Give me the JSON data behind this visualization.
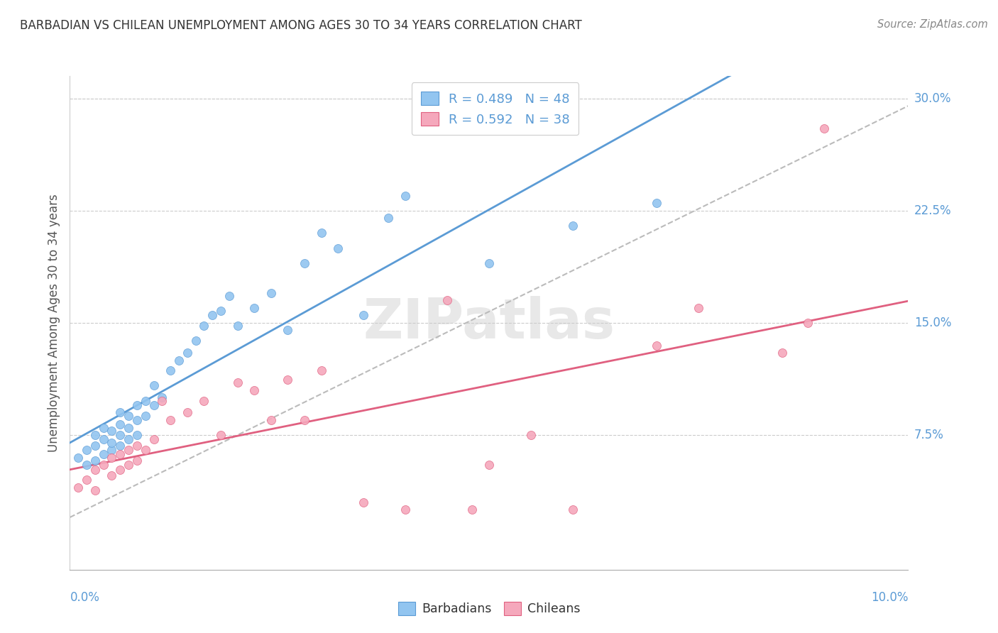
{
  "title": "BARBADIAN VS CHILEAN UNEMPLOYMENT AMONG AGES 30 TO 34 YEARS CORRELATION CHART",
  "source": "Source: ZipAtlas.com",
  "ylabel": "Unemployment Among Ages 30 to 34 years",
  "xlim": [
    0.0,
    0.1
  ],
  "ylim": [
    -0.015,
    0.315
  ],
  "ytick_vals": [
    0.075,
    0.15,
    0.225,
    0.3
  ],
  "ytick_labels": [
    "7.5%",
    "15.0%",
    "22.5%",
    "30.0%"
  ],
  "barbadian_color": "#92C5F0",
  "barbadian_edge_color": "#5B9BD5",
  "chilean_color": "#F5A8BC",
  "chilean_edge_color": "#E06080",
  "barbadian_line_color": "#5B9BD5",
  "chilean_line_color": "#E06080",
  "dash_line_color": "#BBBBBB",
  "grid_color": "#CCCCCC",
  "tick_label_color": "#5B9BD5",
  "ylabel_color": "#555555",
  "title_color": "#333333",
  "source_color": "#888888",
  "watermark": "ZIPatlas",
  "r_barbadian": 0.489,
  "n_barbadian": 48,
  "r_chilean": 0.592,
  "n_chilean": 38,
  "barb_x": [
    0.001,
    0.002,
    0.002,
    0.003,
    0.003,
    0.003,
    0.004,
    0.004,
    0.004,
    0.005,
    0.005,
    0.005,
    0.006,
    0.006,
    0.006,
    0.006,
    0.007,
    0.007,
    0.007,
    0.008,
    0.008,
    0.008,
    0.009,
    0.009,
    0.01,
    0.01,
    0.011,
    0.012,
    0.013,
    0.014,
    0.015,
    0.016,
    0.017,
    0.018,
    0.019,
    0.02,
    0.022,
    0.024,
    0.026,
    0.028,
    0.03,
    0.032,
    0.035,
    0.038,
    0.04,
    0.05,
    0.06,
    0.07
  ],
  "barb_y": [
    0.06,
    0.055,
    0.065,
    0.058,
    0.068,
    0.075,
    0.062,
    0.072,
    0.08,
    0.065,
    0.07,
    0.078,
    0.068,
    0.075,
    0.082,
    0.09,
    0.072,
    0.08,
    0.088,
    0.075,
    0.085,
    0.095,
    0.088,
    0.098,
    0.095,
    0.108,
    0.1,
    0.118,
    0.125,
    0.13,
    0.138,
    0.148,
    0.155,
    0.158,
    0.168,
    0.148,
    0.16,
    0.17,
    0.145,
    0.19,
    0.21,
    0.2,
    0.155,
    0.22,
    0.235,
    0.19,
    0.215,
    0.23
  ],
  "chile_x": [
    0.001,
    0.002,
    0.003,
    0.003,
    0.004,
    0.005,
    0.005,
    0.006,
    0.006,
    0.007,
    0.007,
    0.008,
    0.008,
    0.009,
    0.01,
    0.011,
    0.012,
    0.014,
    0.016,
    0.018,
    0.02,
    0.022,
    0.024,
    0.026,
    0.028,
    0.03,
    0.035,
    0.04,
    0.045,
    0.048,
    0.05,
    0.055,
    0.06,
    0.07,
    0.075,
    0.085,
    0.088,
    0.09
  ],
  "chile_y": [
    0.04,
    0.045,
    0.038,
    0.052,
    0.055,
    0.048,
    0.06,
    0.052,
    0.062,
    0.055,
    0.065,
    0.058,
    0.068,
    0.065,
    0.072,
    0.098,
    0.085,
    0.09,
    0.098,
    0.075,
    0.11,
    0.105,
    0.085,
    0.112,
    0.085,
    0.118,
    0.03,
    0.025,
    0.165,
    0.025,
    0.055,
    0.075,
    0.025,
    0.135,
    0.16,
    0.13,
    0.15,
    0.28
  ]
}
